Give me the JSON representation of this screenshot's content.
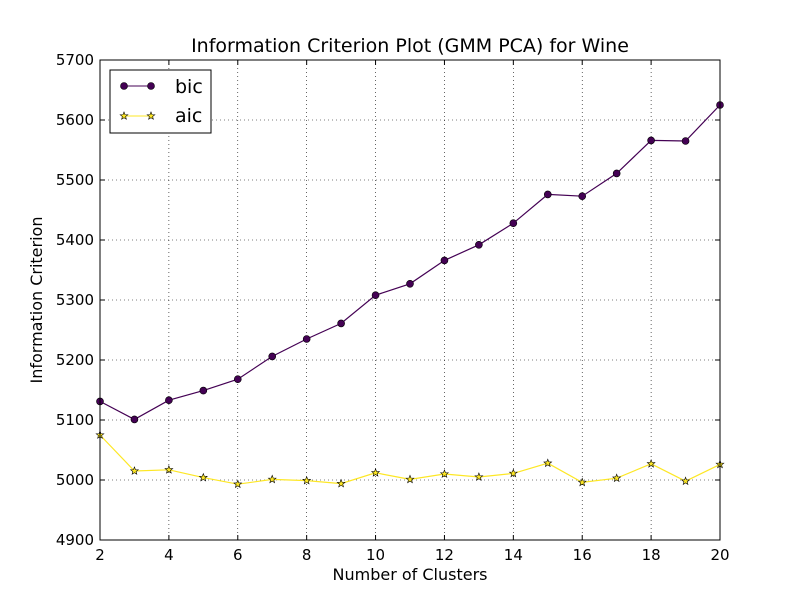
{
  "chart_data": {
    "type": "line",
    "title": "Information Criterion Plot (GMM PCA) for Wine",
    "xlabel": "Number of Clusters",
    "ylabel": "Information Criterion",
    "xlim": [
      2,
      20
    ],
    "ylim": [
      4900,
      5700
    ],
    "x_ticks": [
      2,
      4,
      6,
      8,
      10,
      12,
      14,
      16,
      18,
      20
    ],
    "y_ticks": [
      4900,
      5000,
      5100,
      5200,
      5300,
      5400,
      5500,
      5600,
      5700
    ],
    "grid": true,
    "legend_position": "top-left",
    "x": [
      2,
      3,
      4,
      5,
      6,
      7,
      8,
      9,
      10,
      11,
      12,
      13,
      14,
      15,
      16,
      17,
      18,
      19,
      20
    ],
    "series": [
      {
        "name": "bic",
        "color": "#440154",
        "marker": "circle",
        "values": [
          5131,
          5101,
          5133,
          5149,
          5168,
          5206,
          5235,
          5261,
          5308,
          5327,
          5366,
          5392,
          5428,
          5476,
          5473,
          5511,
          5566,
          5565,
          5625
        ]
      },
      {
        "name": "aic",
        "color": "#fde725",
        "marker": "star",
        "values": [
          5075,
          5015,
          5017,
          5004,
          4993,
          5001,
          4999,
          4994,
          5012,
          5001,
          5010,
          5005,
          5011,
          5028,
          4996,
          5003,
          5027,
          4998,
          5026
        ]
      }
    ]
  }
}
